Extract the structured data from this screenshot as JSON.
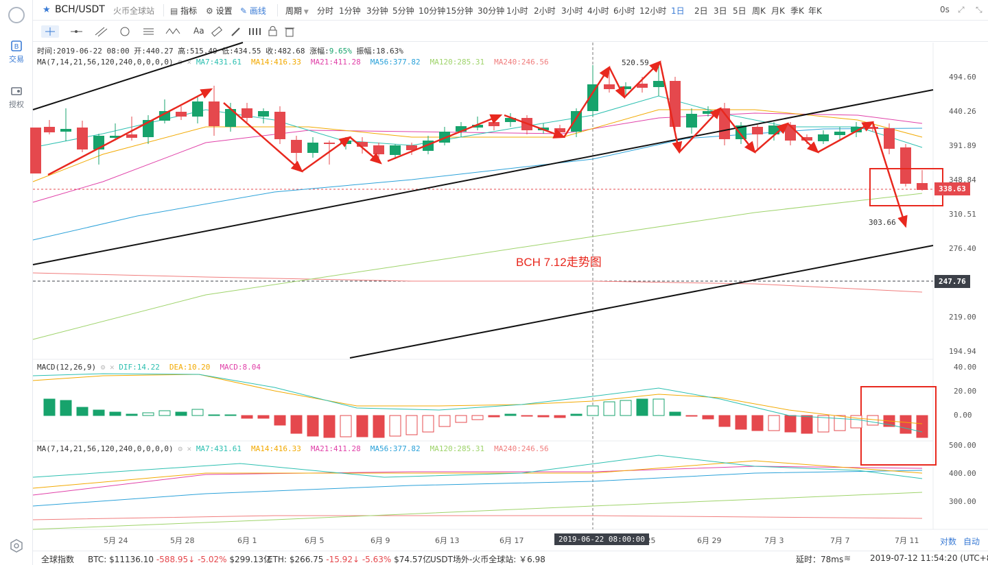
{
  "toolbar": {
    "symbol": "BCH/USDT",
    "exchange": "火币全球站",
    "indicators": "指标",
    "settings": "设置",
    "draw": "画线",
    "period_label": "周期",
    "periods": [
      "分时",
      "1分钟",
      "3分钟",
      "5分钟",
      "10分钟",
      "15分钟",
      "30分钟",
      "1小时",
      "2小时",
      "3小时",
      "4小时",
      "6小时",
      "12小时",
      "1日",
      "2日",
      "3日",
      "5日",
      "周K",
      "月K",
      "季K",
      "年K"
    ],
    "active_period": "1日",
    "countdown": "0s"
  },
  "rail": {
    "trade": "交易",
    "authorize": "授权"
  },
  "drawbar": {
    "text_tool": "Aa"
  },
  "ohlc": {
    "time": "时间:2019-06-22 08:00",
    "open": "开:440.27",
    "high": "高:515.49",
    "low": "低:434.55",
    "close": "收:482.68",
    "change_label": "涨幅:",
    "change": "9.65%",
    "amplitude": "振幅:18.63%"
  },
  "ma_legend": {
    "label": "MA(7,14,21,56,120,240,0,0,0,0)",
    "items": [
      {
        "text": "MA7:431.61",
        "color": "#2bbfb0"
      },
      {
        "text": "MA14:416.33",
        "color": "#f2a900"
      },
      {
        "text": "MA21:411.28",
        "color": "#e040a8"
      },
      {
        "text": "MA56:377.82",
        "color": "#2aa1d9"
      },
      {
        "text": "MA120:285.31",
        "color": "#9ed36a"
      },
      {
        "text": "MA240:246.56",
        "color": "#f07c7c"
      }
    ]
  },
  "macd_legend": {
    "label": "MACD(12,26,9)",
    "items": [
      {
        "text": "DIF:14.22",
        "color": "#2bbfb0"
      },
      {
        "text": "DEA:10.20",
        "color": "#f2a900"
      },
      {
        "text": "MACD:8.04",
        "color": "#e040a8"
      }
    ]
  },
  "price_scale": [
    "494.60",
    "440.26",
    "391.89",
    "348.84",
    "310.51",
    "276.40",
    "219.00",
    "194.94"
  ],
  "current_price": "338.63",
  "ref_price": "247.76",
  "macd_scale": [
    "40.00",
    "20.00",
    "0.00"
  ],
  "ma_scale": [
    "500.00",
    "400.00",
    "300.00"
  ],
  "annotations": {
    "high": "520.59",
    "low": "303.66",
    "title": "BCH 7.12走势图"
  },
  "x_ticks": [
    "5月 24",
    "5月 28",
    "6月 1",
    "6月 5",
    "6月 9",
    "6月 13",
    "6月 17",
    "6月 25",
    "6月 29",
    "7月 3",
    "7月 7",
    "7月 11"
  ],
  "crosshair_date": "2019-06-22 08:00:00",
  "scale_modes": [
    "对数",
    "自动"
  ],
  "bottom": {
    "index_label": "全球指数",
    "btc": {
      "name": "BTC:",
      "price": "$11136.10",
      "change": "-588.95",
      "pct": "-5.02%",
      "vol": "$299.13亿"
    },
    "eth": {
      "name": "ETH:",
      "price": "$266.75",
      "change": "-15.92",
      "pct": "-5.63%",
      "vol": "$74.57亿"
    },
    "otc": "USDT场外-火币全球站: ￥6.98",
    "latency": "延时：78ms",
    "datetime": "2019-07-12 11:54:20 (UTC+8)"
  },
  "colors": {
    "up": "#17a36c",
    "down": "#e5484d",
    "accent": "#3a7bd5",
    "arrow": "#e8281e"
  }
}
